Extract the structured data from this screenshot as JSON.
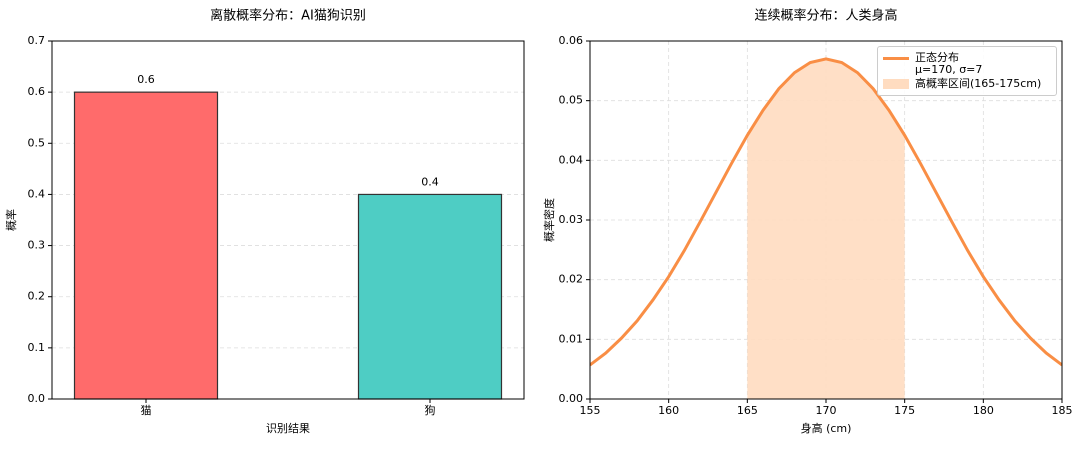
{
  "chart_data": [
    {
      "type": "bar",
      "title": "离散概率分布：AI猫狗识别",
      "xlabel": "识别结果",
      "ylabel": "概率",
      "categories": [
        "猫",
        "狗"
      ],
      "values": [
        0.6,
        0.4
      ],
      "colors": [
        "#ff6b6b",
        "#4ecdc4"
      ],
      "ylim": [
        0,
        0.7
      ],
      "yticks": [
        {
          "value": 0,
          "label": "0.0"
        },
        0.1,
        0.2,
        0.3,
        0.4,
        0.5,
        0.6,
        0.7
      ],
      "grid": "y"
    },
    {
      "type": "line",
      "title": "连续概率分布：人类身高",
      "xlabel": "身高 (cm)",
      "ylabel": "概率密度",
      "x": [
        155,
        156,
        157,
        158,
        159,
        160,
        161,
        162,
        163,
        164,
        165,
        166,
        167,
        168,
        169,
        170,
        171,
        172,
        173,
        174,
        175,
        176,
        177,
        178,
        179,
        180,
        181,
        182,
        183,
        184,
        185
      ],
      "series": [
        {
          "name": "正态分布\nμ=170, σ=7",
          "color": "#f98e45",
          "values": [
            0.0057,
            0.0077,
            0.0102,
            0.0131,
            0.0166,
            0.0205,
            0.0249,
            0.0297,
            0.0346,
            0.0395,
            0.0442,
            0.0484,
            0.052,
            0.0547,
            0.0564,
            0.057,
            0.0564,
            0.0547,
            0.052,
            0.0484,
            0.0442,
            0.0395,
            0.0346,
            0.0297,
            0.0249,
            0.0205,
            0.0166,
            0.0131,
            0.0102,
            0.0077,
            0.0057
          ]
        }
      ],
      "shade": {
        "name": "高概率区间(165-175cm)",
        "color": "#ffdcc0",
        "range": [
          165,
          175
        ]
      },
      "xlim": [
        155,
        185
      ],
      "xticks": [
        155,
        160,
        165,
        170,
        175,
        180,
        185
      ],
      "ylim": [
        0,
        0.06
      ],
      "yticks": [
        {
          "value": 0,
          "label": "0.00"
        },
        {
          "value": 0.01,
          "label": "0.01"
        },
        {
          "value": 0.02,
          "label": "0.02"
        },
        {
          "value": 0.03,
          "label": "0.03"
        },
        {
          "value": 0.04,
          "label": "0.04"
        },
        {
          "value": 0.05,
          "label": "0.05"
        },
        {
          "value": 0.06,
          "label": "0.06"
        }
      ],
      "grid": "both",
      "legend": "upper right"
    }
  ]
}
